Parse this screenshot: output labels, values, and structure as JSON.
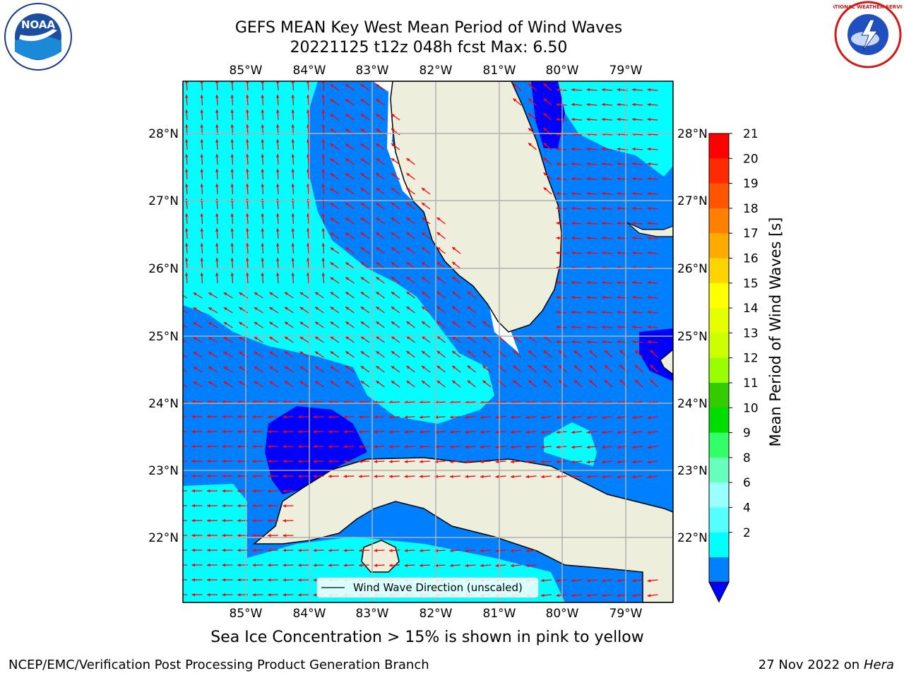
{
  "title_line1": "GEFS MEAN Key West Mean Period of Wind Waves",
  "title_line2": "20221125 t12z 048h fcst   Max: 6.50",
  "lon_labels": [
    "85°W",
    "84°W",
    "83°W",
    "82°W",
    "81°W",
    "80°W",
    "79°W"
  ],
  "lat_labels": [
    "28°N",
    "27°N",
    "26°N",
    "25°N",
    "24°N",
    "23°N",
    "22°N"
  ],
  "colorbar": {
    "label": "Mean Period of Wind Waves [s]",
    "ticks": [
      "21",
      "20",
      "19",
      "18",
      "17",
      "16",
      "15",
      "14",
      "13",
      "12",
      "11",
      "10",
      "9",
      "8",
      "6",
      "4",
      "2"
    ],
    "colors": [
      "#ff0000",
      "#ff2a00",
      "#ff5500",
      "#ff8000",
      "#ffaa00",
      "#ffd400",
      "#ffff00",
      "#e6ff00",
      "#ccff00",
      "#99ff00",
      "#33cc00",
      "#00dd00",
      "#33ff66",
      "#66ffbb",
      "#99ffff",
      "#55ffff",
      "#00ffff",
      "#0080ff",
      "#0000ff"
    ]
  },
  "legend": {
    "label": "Wind Wave Direction (unscaled)"
  },
  "subtitle": "Sea Ice Concentration > 15% is shown in pink to yellow",
  "footer_left": "NCEP/EMC/Verification Post Processing Product Generation Branch",
  "footer_date": "27 Nov 2022 on",
  "footer_host": "Hera",
  "logos": {
    "left": "noaa-logo",
    "right": "nws-logo",
    "left_text": "NOAA",
    "right_text": "NATIONAL WEATHER SERVICE"
  },
  "map_colors": {
    "cyan": "#00ffff",
    "blue": "#0080ff",
    "dark_blue": "#0000ff",
    "land": "#eeeedd",
    "arrow": "#ff0000",
    "grid": "#b0b0b0"
  }
}
